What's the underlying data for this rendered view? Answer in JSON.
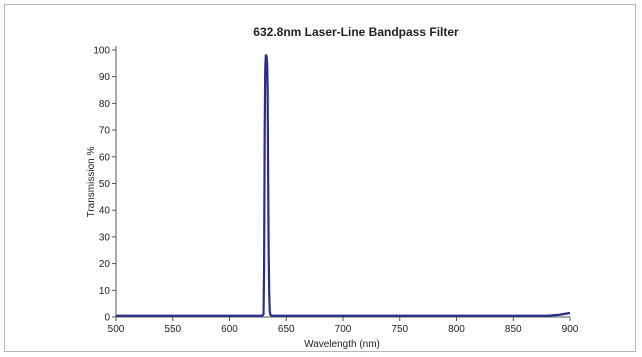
{
  "chart_data": {
    "type": "line",
    "title": "632.8nm Laser-Line Bandpass Filter",
    "xlabel": "Wavelength (nm)",
    "ylabel": "Transmission %",
    "xlim": [
      500,
      900
    ],
    "ylim": [
      0,
      100
    ],
    "xticks": [
      500,
      550,
      600,
      650,
      700,
      750,
      800,
      850,
      900
    ],
    "yticks": [
      0,
      10,
      20,
      30,
      40,
      50,
      60,
      70,
      80,
      90,
      100
    ],
    "grid": false,
    "line_color": "#2b2b8c",
    "series": [
      {
        "x": [
          500,
          600,
          625,
          629,
          630,
          630.5,
          631,
          631.5,
          632,
          632.4,
          632.8,
          633.2,
          633.6,
          634,
          634.5,
          635,
          635.5,
          636,
          637,
          640,
          700,
          800,
          880,
          890,
          900
        ],
        "y": [
          0.5,
          0.5,
          0.5,
          0.5,
          1,
          20,
          70,
          93,
          98,
          98,
          97,
          95,
          85,
          55,
          25,
          8,
          2,
          0.8,
          0.5,
          0.5,
          0.5,
          0.5,
          0.5,
          0.8,
          1.5
        ]
      }
    ]
  }
}
